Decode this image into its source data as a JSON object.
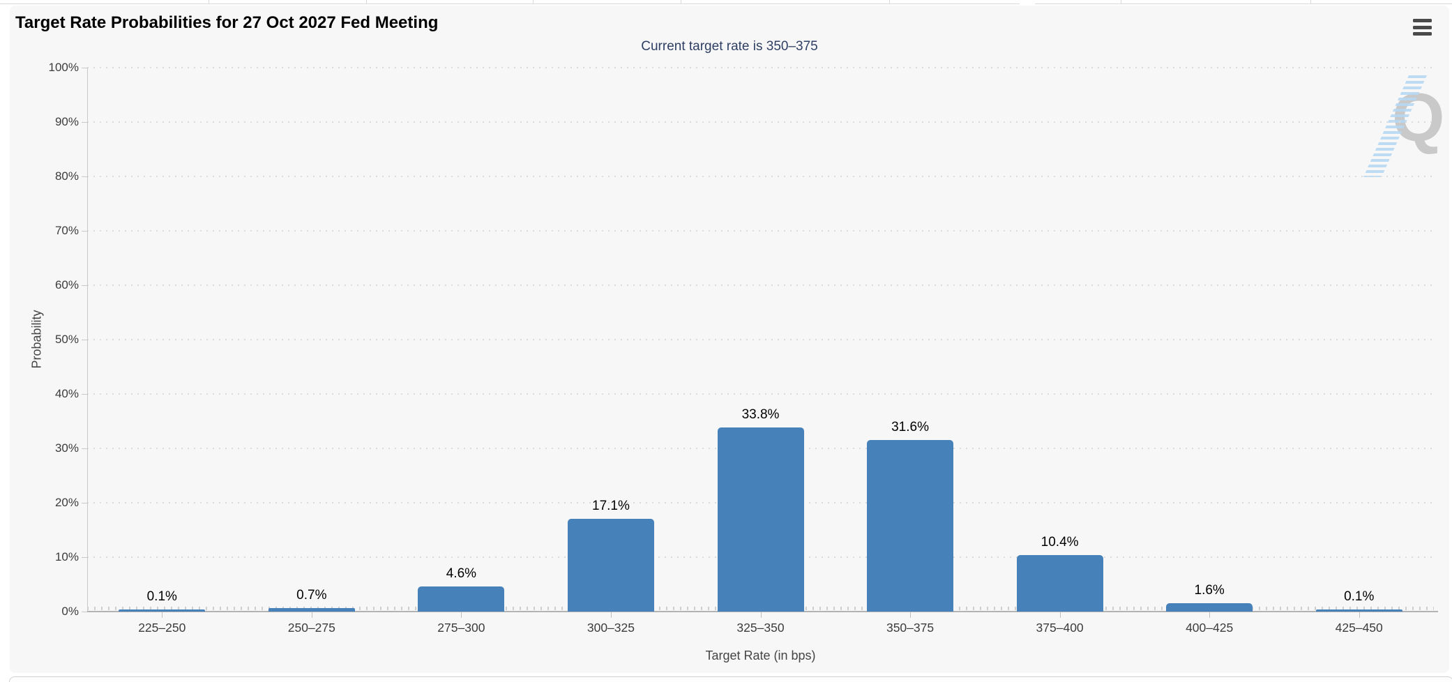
{
  "panel": {
    "title": "Target Rate Probabilities for 27 Oct 2027 Fed Meeting",
    "subtitle": "Current target rate is 350–375"
  },
  "watermark": {
    "letter": "Q"
  },
  "chart_data": {
    "type": "bar",
    "title": "Target Rate Probabilities for 27 Oct 2027 Fed Meeting",
    "subtitle": "Current target rate is 350–375",
    "categories": [
      "225–250",
      "250–275",
      "275–300",
      "300–325",
      "325–350",
      "350–375",
      "375–400",
      "400–425",
      "425–450"
    ],
    "values": [
      0.1,
      0.7,
      4.6,
      17.1,
      33.8,
      31.6,
      10.4,
      1.6,
      0.1
    ],
    "value_labels": [
      "0.1%",
      "0.7%",
      "4.6%",
      "17.1%",
      "33.8%",
      "31.6%",
      "10.4%",
      "1.6%",
      "0.1%"
    ],
    "xlabel": "Target Rate (in bps)",
    "ylabel": "Probability",
    "ylim": [
      0,
      100
    ],
    "ytick_interval": 10,
    "ytick_labels": [
      "0%",
      "10%",
      "20%",
      "30%",
      "40%",
      "50%",
      "60%",
      "70%",
      "80%",
      "90%",
      "100%"
    ],
    "grid": "dotted-horizontal",
    "legend": "none",
    "bar_color": "#4781BA",
    "subtitle_color": "#2e3f63"
  }
}
